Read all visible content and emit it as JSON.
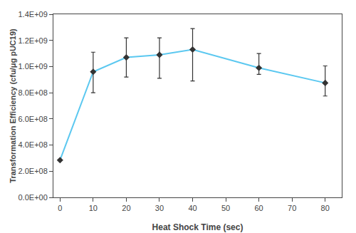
{
  "chart_data": {
    "type": "line",
    "xlabel": "Heat Shock Time (sec)",
    "ylabel": "Transformation Efficiency (cfu/μg pUC19)",
    "x": [
      0,
      10,
      20,
      30,
      40,
      60,
      80
    ],
    "color": "#333333",
    "marker": "diamond",
    "series": [
      {
        "color": "#5BC8F0",
        "values": [
          285000000.0,
          960000000.0,
          1070000000.0,
          1090000000.0,
          1130000000.0,
          990000000.0,
          875000000.0
        ],
        "error_upper": [
          0,
          150000000.0,
          150000000.0,
          130000000.0,
          160000000.0,
          110000000.0,
          130000000.0
        ],
        "error_lower": [
          0,
          160000000.0,
          150000000.0,
          180000000.0,
          240000000.0,
          50000000.0,
          100000000.0
        ]
      }
    ],
    "xlim": [
      -2,
      85
    ],
    "ylim": [
      0,
      1400000000.0
    ],
    "xticks": [
      0,
      10,
      20,
      30,
      40,
      50,
      60,
      70,
      80
    ],
    "yticks": [
      {
        "value": 0,
        "label": "0.0E+00"
      },
      {
        "value": 200000000.0,
        "label": "2.0E+08"
      },
      {
        "value": 400000000.0,
        "label": "4.0E+08"
      },
      {
        "value": 600000000.0,
        "label": "6.0E+08"
      },
      {
        "value": 800000000.0,
        "label": "8.0E+08"
      },
      {
        "value": 1000000000.0,
        "label": "1.0E+09"
      },
      {
        "value": 1200000000.0,
        "label": "1.2E+09"
      },
      {
        "value": 1400000000.0,
        "label": "1.4E+09"
      }
    ],
    "grid": false
  }
}
